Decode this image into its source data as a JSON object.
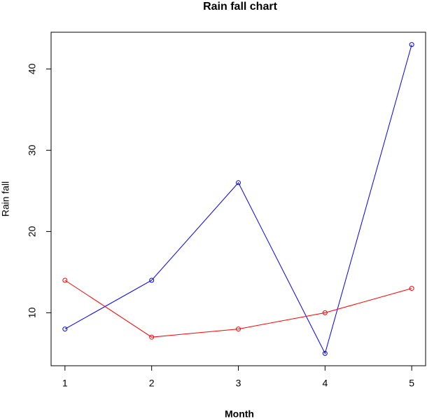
{
  "chart_data": {
    "type": "line",
    "title": "Rain fall chart",
    "x_label": "Month",
    "y_label": "Rain fall",
    "x": [
      1,
      2,
      3,
      4,
      5
    ],
    "series": [
      {
        "color": "#0000ff",
        "values": [
          8,
          14,
          26,
          5,
          43
        ]
      },
      {
        "color": "#ff0000",
        "values": [
          14,
          7,
          8,
          10,
          13
        ]
      }
    ],
    "xlim": [
      0.84,
      5.16
    ],
    "xticks": [
      1,
      2,
      3,
      4,
      5
    ],
    "ylim": [
      3.48,
      44.52
    ],
    "yticks": [
      10,
      20,
      30,
      40
    ],
    "grid": false
  }
}
